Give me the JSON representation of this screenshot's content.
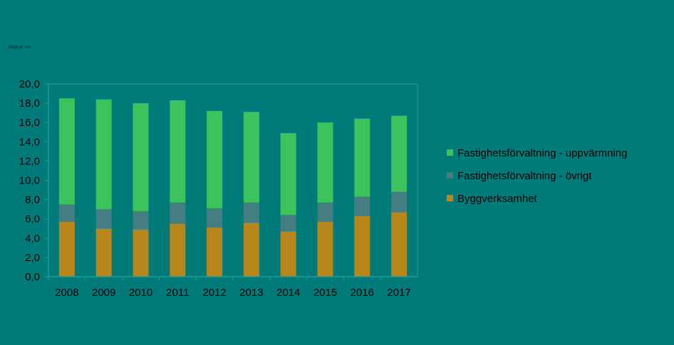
{
  "unit_label": "Miljoner ton",
  "colors": {
    "background": "#007b7a",
    "axis": "#1f9a99",
    "series": [
      "#b8861b",
      "#447e82",
      "#3cc35c"
    ]
  },
  "chart_data": {
    "type": "bar",
    "stacked": true,
    "title": "",
    "xlabel": "",
    "ylabel": "",
    "categories": [
      "2008",
      "2009",
      "2010",
      "2011",
      "2012",
      "2013",
      "2014",
      "2015",
      "2016",
      "2017"
    ],
    "series": [
      {
        "name": "Byggverksamhet",
        "values": [
          5.7,
          5.0,
          4.9,
          5.5,
          5.1,
          5.6,
          4.7,
          5.7,
          6.3,
          6.7
        ]
      },
      {
        "name": "Fastighetsförvaltning - övrigt",
        "values": [
          1.8,
          2.0,
          1.9,
          2.2,
          2.0,
          2.1,
          1.7,
          2.0,
          2.0,
          2.1
        ]
      },
      {
        "name": "Fastighetsförvaltning - uppvärmning",
        "values": [
          11.0,
          11.4,
          11.2,
          10.6,
          10.1,
          9.4,
          8.5,
          8.3,
          8.1,
          7.9
        ]
      }
    ],
    "ylim": [
      0,
      20
    ],
    "yticks": [
      "0,0",
      "2,0",
      "4,0",
      "6,0",
      "8,0",
      "10,0",
      "12,0",
      "14,0",
      "16,0",
      "18,0",
      "20,0"
    ],
    "grid": false,
    "legend": "right"
  }
}
